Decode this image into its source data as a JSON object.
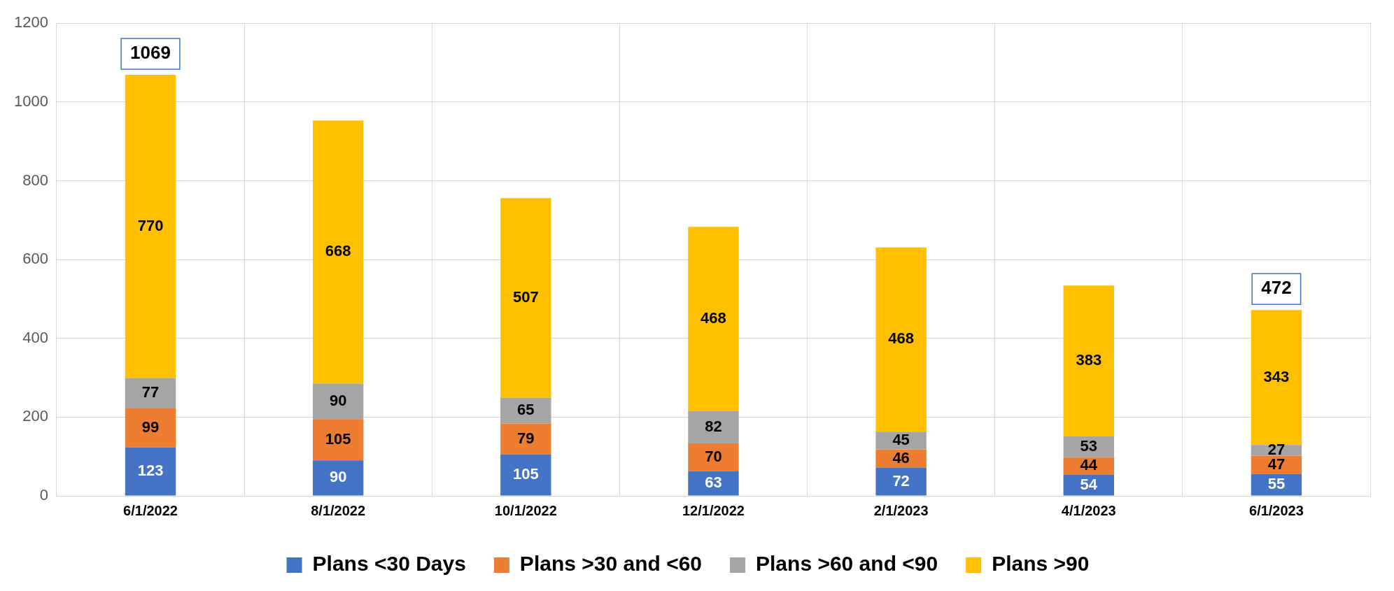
{
  "chart_data": {
    "type": "bar",
    "stacked": true,
    "categories": [
      "6/1/2022",
      "8/1/2022",
      "10/1/2022",
      "12/1/2022",
      "2/1/2023",
      "4/1/2023",
      "6/1/2023"
    ],
    "series": [
      {
        "name": "Plans <30 Days",
        "color": "#4472c4",
        "values": [
          123,
          90,
          105,
          63,
          72,
          54,
          55
        ]
      },
      {
        "name": "Plans >30 and <60",
        "color": "#ed7d31",
        "values": [
          99,
          105,
          79,
          70,
          46,
          44,
          47
        ]
      },
      {
        "name": "Plans >60 and <90",
        "color": "#a5a5a5",
        "values": [
          77,
          90,
          65,
          82,
          45,
          53,
          27
        ]
      },
      {
        "name": "Plans >90",
        "color": "#ffc000",
        "values": [
          770,
          668,
          507,
          468,
          468,
          383,
          343
        ]
      }
    ],
    "totals": [
      "1069",
      null,
      null,
      null,
      null,
      null,
      "472"
    ],
    "ylim": [
      0,
      1200
    ],
    "yticks": [
      0,
      200,
      400,
      600,
      800,
      1000,
      1200
    ],
    "grid": true,
    "legend": "bottom",
    "data_labels": true
  }
}
